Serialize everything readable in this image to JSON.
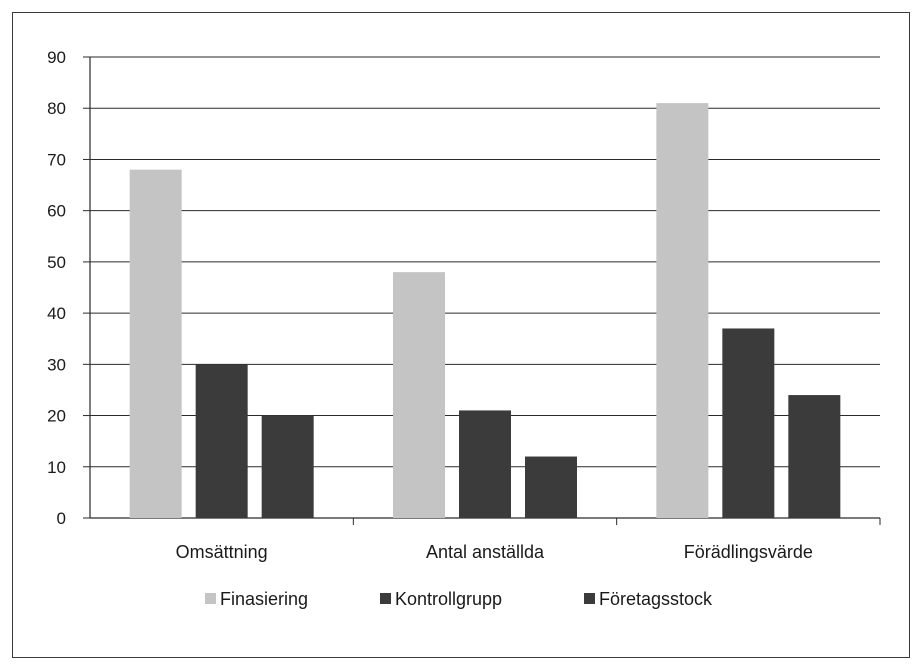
{
  "chart_data": {
    "type": "bar",
    "categories": [
      "Omsättning",
      "Antal anställda",
      "Förädlingsvärde"
    ],
    "series": [
      {
        "name": "Finasiering",
        "values": [
          68,
          48,
          81
        ],
        "color": "#c4c4c4"
      },
      {
        "name": "Kontrollgrupp",
        "values": [
          30,
          21,
          37
        ],
        "color": "#3b3b3b"
      },
      {
        "name": "Företagsstock",
        "values": [
          20,
          12,
          24
        ],
        "color": "#3b3b3b"
      }
    ],
    "ylim": [
      0,
      90
    ],
    "yticks": [
      0,
      10,
      20,
      30,
      40,
      50,
      60,
      70,
      80,
      90
    ],
    "grid": true,
    "legend": "bottom",
    "title": "",
    "xlabel": "",
    "ylabel": ""
  }
}
